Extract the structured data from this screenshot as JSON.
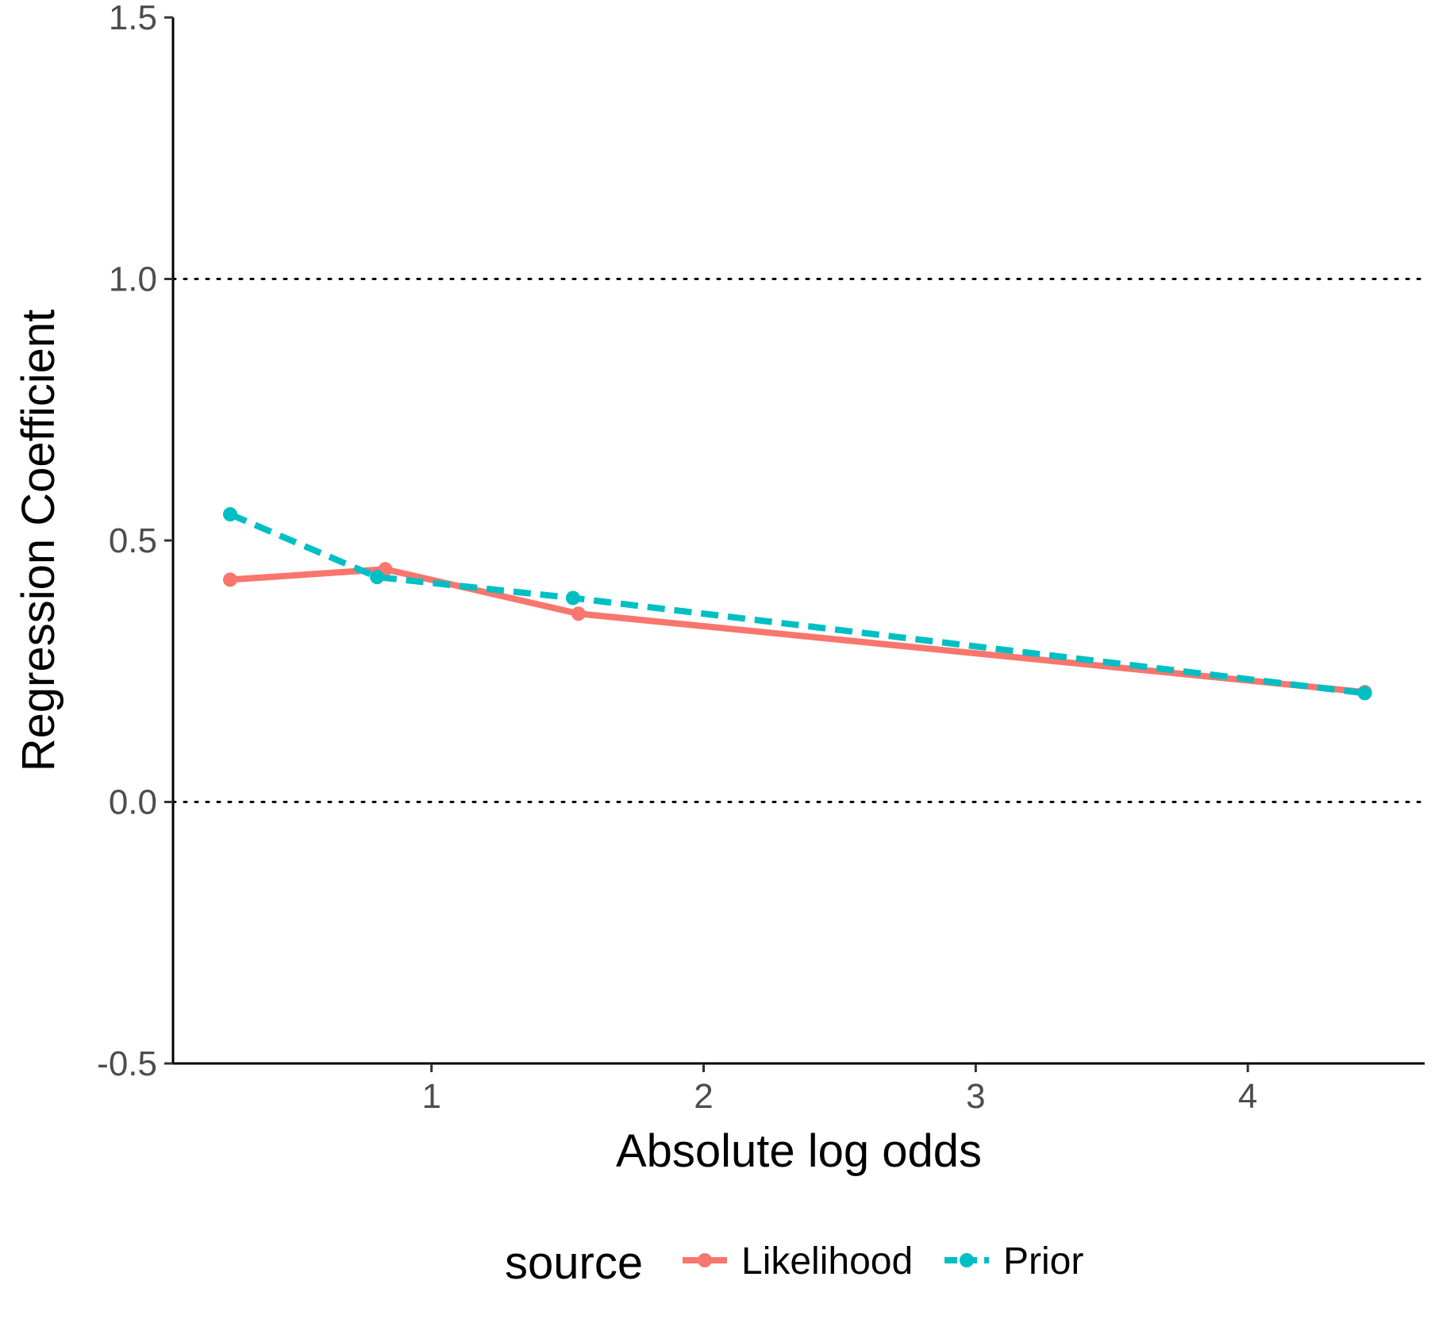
{
  "chart_data": {
    "type": "line",
    "xlabel": "Absolute log odds",
    "ylabel": "Regression Coefficient",
    "xlim": [
      0.05,
      4.65
    ],
    "ylim": [
      -0.5,
      1.5
    ],
    "x_ticks": [
      1,
      2,
      3,
      4
    ],
    "x_tick_labels": [
      "1",
      "2",
      "3",
      "4"
    ],
    "y_ticks": [
      -0.5,
      0.0,
      0.5,
      1.0,
      1.5
    ],
    "y_tick_labels": [
      "-0.5",
      "0.0",
      "0.5",
      "1.0",
      "1.5"
    ],
    "reference_lines": [
      0.0,
      1.0
    ],
    "grid": false,
    "legend": {
      "title": "source",
      "position": "bottom"
    },
    "series": [
      {
        "name": "Likelihood",
        "color": "#F8766D",
        "line_style": "solid",
        "x": [
          0.26,
          0.83,
          1.54,
          4.43
        ],
        "y": [
          0.425,
          0.445,
          0.36,
          0.21
        ]
      },
      {
        "name": "Prior",
        "color": "#00BFC4",
        "line_style": "dashed",
        "x": [
          0.26,
          0.8,
          1.52,
          4.43
        ],
        "y": [
          0.55,
          0.43,
          0.39,
          0.208
        ]
      }
    ]
  }
}
